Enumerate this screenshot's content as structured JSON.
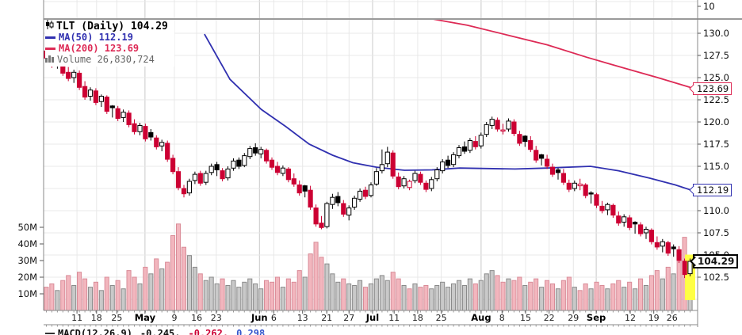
{
  "legend": {
    "symbol": "TLT (Daily) 104.29",
    "ma50": "MA(50) 112.19",
    "ma200": "MA(200) 123.69",
    "volume": "Volume 26,830,724"
  },
  "macd_row": {
    "label": "MACD(12,26,9)",
    "v1": "-0.245,",
    "v2": "-0.262,",
    "v3": "0.298"
  },
  "colors": {
    "down": "#cc0033",
    "up_fill": "#ffffff",
    "up_stroke": "#000000",
    "ma50": "#3030b0",
    "ma200": "#dd2a55",
    "vol_up_fill": "#c9c9c9",
    "vol_up_stroke": "#8a8a8a",
    "vol_down_fill": "#f2b6be",
    "vol_down_stroke": "#d98c98",
    "grid": "#e8e8e8",
    "grid_month": "#c9c9c9",
    "axis": "#888888",
    "separator": "#9a9a9a",
    "tick": "#555555",
    "label": "#111111",
    "legend_gray": "#666666",
    "highlight": "#ffff44",
    "black": "#000000",
    "macd_v2": "#cc0033",
    "macd_v3": "#3355cc"
  },
  "chart_data": {
    "type": "candlestick",
    "title": "TLT (Daily)",
    "last_price": 104.29,
    "ma50_value": 112.19,
    "ma200_value": 123.69,
    "last_volume": "26,830,724",
    "ylim": [
      100,
      131.6
    ],
    "volume_ylim_millions": [
      0,
      55
    ],
    "grid": true,
    "legend_position": "top-left",
    "upper_panel_tick": "10",
    "price_ticks": [
      {
        "l": "130.0",
        "p": 130.0
      },
      {
        "l": "127.5",
        "p": 127.5
      },
      {
        "l": "125.0",
        "p": 125.0
      },
      {
        "l": "122.5",
        "p": 122.5
      },
      {
        "l": "120.0",
        "p": 120.0
      },
      {
        "l": "117.5",
        "p": 117.5
      },
      {
        "l": "115.0",
        "p": 115.0
      },
      {
        "l": "110.0",
        "p": 110.0
      },
      {
        "l": "107.5",
        "p": 107.5
      },
      {
        "l": "105.0",
        "p": 105.0
      },
      {
        "l": "102.5",
        "p": 102.5
      }
    ],
    "callouts": [
      {
        "label": "123.69",
        "price": 123.69,
        "color": "ma200",
        "bold": false
      },
      {
        "label": "112.19",
        "price": 112.19,
        "color": "ma50",
        "bold": false
      },
      {
        "label": "104.29",
        "price": 104.29,
        "color": "black",
        "bold": true
      }
    ],
    "volume_ticks": [
      {
        "l": "50M",
        "v": 50
      },
      {
        "l": "40M",
        "v": 40
      },
      {
        "l": "30M",
        "v": 30
      },
      {
        "l": "20M",
        "v": 20
      },
      {
        "l": "10M",
        "v": 10
      }
    ],
    "date_ticks": [
      {
        "l": "11",
        "f": 0.051,
        "b": false
      },
      {
        "l": "18",
        "f": 0.081,
        "b": false
      },
      {
        "l": "25",
        "f": 0.112,
        "b": false
      },
      {
        "l": "May",
        "f": 0.155,
        "b": true
      },
      {
        "l": "9",
        "f": 0.2,
        "b": false
      },
      {
        "l": "16",
        "f": 0.234,
        "b": false
      },
      {
        "l": "23",
        "f": 0.264,
        "b": false
      },
      {
        "l": "Jun",
        "f": 0.33,
        "b": true
      },
      {
        "l": "6",
        "f": 0.352,
        "b": false
      },
      {
        "l": "13",
        "f": 0.396,
        "b": false
      },
      {
        "l": "21",
        "f": 0.433,
        "b": false
      },
      {
        "l": "27",
        "f": 0.467,
        "b": false
      },
      {
        "l": "Jul",
        "f": 0.503,
        "b": true
      },
      {
        "l": "11",
        "f": 0.536,
        "b": false
      },
      {
        "l": "18",
        "f": 0.572,
        "b": false
      },
      {
        "l": "25",
        "f": 0.608,
        "b": false
      },
      {
        "l": "Aug",
        "f": 0.669,
        "b": true
      },
      {
        "l": "8",
        "f": 0.701,
        "b": false
      },
      {
        "l": "15",
        "f": 0.737,
        "b": false
      },
      {
        "l": "22",
        "f": 0.773,
        "b": false
      },
      {
        "l": "29",
        "f": 0.81,
        "b": false
      },
      {
        "l": "Sep",
        "f": 0.845,
        "b": true
      },
      {
        "l": "12",
        "f": 0.897,
        "b": false
      },
      {
        "l": "19",
        "f": 0.933,
        "b": false
      },
      {
        "l": "26",
        "f": 0.961,
        "b": false
      }
    ],
    "ma50_path": [
      [
        0.246,
        129.9
      ],
      [
        0.285,
        124.8
      ],
      [
        0.333,
        121.4
      ],
      [
        0.37,
        119.5
      ],
      [
        0.406,
        117.5
      ],
      [
        0.442,
        116.25
      ],
      [
        0.473,
        115.4
      ],
      [
        0.509,
        114.9
      ],
      [
        0.552,
        114.55
      ],
      [
        0.594,
        114.6
      ],
      [
        0.636,
        114.8
      ],
      [
        0.721,
        114.7
      ],
      [
        0.77,
        114.8
      ],
      [
        0.836,
        115.0
      ],
      [
        0.879,
        114.5
      ],
      [
        0.927,
        113.66
      ],
      [
        0.966,
        112.9
      ],
      [
        0.993,
        112.25
      ]
    ],
    "ma200_path": [
      [
        0.588,
        131.7
      ],
      [
        0.648,
        130.9
      ],
      [
        0.709,
        129.8
      ],
      [
        0.77,
        128.7
      ],
      [
        0.83,
        127.3
      ],
      [
        0.891,
        126.0
      ],
      [
        0.939,
        125.0
      ],
      [
        0.993,
        123.8
      ]
    ],
    "candles": [
      [
        128.0,
        128.6,
        126.9,
        127.2,
        "r",
        14
      ],
      [
        127.3,
        127.8,
        126.1,
        126.4,
        "r",
        16
      ],
      [
        126.5,
        127.3,
        126.0,
        127.0,
        "w",
        12
      ],
      [
        126.9,
        127.1,
        125.2,
        125.5,
        "r",
        18
      ],
      [
        125.6,
        126.2,
        124.6,
        124.9,
        "r",
        21
      ],
      [
        125.0,
        125.9,
        124.4,
        125.6,
        "w",
        15
      ],
      [
        125.5,
        125.8,
        123.6,
        123.9,
        "r",
        23
      ],
      [
        124.0,
        124.6,
        122.5,
        122.8,
        "r",
        19
      ],
      [
        122.9,
        123.9,
        122.4,
        123.6,
        "w",
        14
      ],
      [
        123.5,
        123.8,
        121.9,
        122.2,
        "r",
        17
      ],
      [
        122.3,
        123.1,
        121.7,
        122.9,
        "w",
        12
      ],
      [
        122.8,
        123.0,
        120.9,
        121.2,
        "r",
        20
      ],
      [
        121.8,
        121.9,
        120.5,
        121.6,
        "b",
        15
      ],
      [
        121.5,
        121.8,
        120.1,
        120.4,
        "r",
        18
      ],
      [
        120.5,
        121.4,
        120.0,
        121.1,
        "w",
        13
      ],
      [
        121.0,
        121.3,
        119.4,
        119.7,
        "r",
        24
      ],
      [
        119.8,
        120.3,
        118.6,
        118.9,
        "r",
        20
      ],
      [
        118.9,
        119.9,
        118.5,
        119.6,
        "w",
        16
      ],
      [
        119.5,
        119.8,
        117.8,
        118.1,
        "r",
        26
      ],
      [
        118.8,
        119.2,
        117.9,
        118.3,
        "b",
        22
      ],
      [
        118.2,
        118.5,
        116.9,
        117.2,
        "r",
        31
      ],
      [
        117.3,
        118.0,
        116.7,
        117.7,
        "w",
        25
      ],
      [
        117.6,
        117.9,
        115.5,
        115.8,
        "r",
        29
      ],
      [
        115.9,
        116.3,
        114.1,
        114.4,
        "r",
        45
      ],
      [
        114.4,
        114.9,
        112.3,
        112.6,
        "r",
        52
      ],
      [
        112.5,
        112.9,
        111.5,
        111.9,
        "r",
        38
      ],
      [
        112.0,
        113.6,
        111.7,
        113.3,
        "w",
        33
      ],
      [
        113.4,
        114.4,
        113.0,
        114.1,
        "w",
        26
      ],
      [
        114.2,
        114.5,
        112.8,
        113.1,
        "r",
        22
      ],
      [
        113.2,
        114.5,
        112.9,
        114.2,
        "w",
        18
      ],
      [
        114.3,
        115.3,
        114.0,
        115.0,
        "w",
        20
      ],
      [
        115.2,
        115.5,
        113.9,
        114.6,
        "b",
        16
      ],
      [
        114.5,
        114.8,
        113.3,
        113.6,
        "r",
        19
      ],
      [
        113.7,
        115.0,
        113.4,
        114.7,
        "w",
        15
      ],
      [
        114.8,
        115.9,
        114.5,
        115.6,
        "w",
        18
      ],
      [
        115.7,
        116.0,
        114.7,
        115.0,
        "b",
        14
      ],
      [
        115.1,
        116.5,
        114.9,
        116.2,
        "w",
        17
      ],
      [
        116.1,
        117.3,
        115.8,
        117.0,
        "w",
        19
      ],
      [
        117.1,
        117.6,
        116.2,
        116.5,
        "b",
        16
      ],
      [
        116.4,
        117.2,
        115.9,
        116.9,
        "w",
        13
      ],
      [
        116.8,
        117.0,
        115.3,
        115.6,
        "r",
        18
      ],
      [
        115.7,
        116.0,
        114.6,
        114.9,
        "r",
        17
      ],
      [
        115.0,
        115.5,
        114.0,
        114.3,
        "r",
        20
      ],
      [
        114.2,
        115.1,
        113.9,
        114.8,
        "w",
        14
      ],
      [
        114.7,
        114.9,
        113.2,
        113.5,
        "r",
        19
      ],
      [
        113.6,
        114.2,
        112.7,
        113.0,
        "r",
        17
      ],
      [
        112.9,
        113.4,
        111.7,
        112.0,
        "r",
        24
      ],
      [
        112.8,
        112.9,
        111.5,
        112.2,
        "b",
        20
      ],
      [
        112.3,
        112.8,
        110.1,
        110.4,
        "r",
        34
      ],
      [
        110.3,
        110.7,
        108.2,
        108.5,
        "r",
        41
      ],
      [
        108.6,
        109.4,
        107.9,
        108.1,
        "r",
        32
      ],
      [
        108.2,
        111.0,
        108.0,
        110.8,
        "w",
        28
      ],
      [
        110.7,
        111.9,
        110.2,
        111.5,
        "w",
        22
      ],
      [
        111.6,
        112.1,
        110.5,
        110.9,
        "b",
        17
      ],
      [
        110.8,
        111.2,
        109.3,
        109.6,
        "r",
        19
      ],
      [
        109.5,
        110.6,
        108.9,
        110.3,
        "w",
        16
      ],
      [
        110.4,
        111.7,
        110.1,
        111.4,
        "w",
        15
      ],
      [
        111.3,
        112.5,
        111.0,
        112.2,
        "w",
        18
      ],
      [
        112.3,
        112.7,
        111.3,
        111.6,
        "r",
        14
      ],
      [
        111.7,
        113.2,
        111.5,
        112.9,
        "w",
        16
      ],
      [
        113.0,
        114.8,
        112.8,
        114.4,
        "w",
        19
      ],
      [
        114.5,
        116.9,
        114.2,
        115.2,
        "w",
        21
      ],
      [
        115.3,
        117.2,
        114.9,
        116.6,
        "w",
        18
      ],
      [
        116.5,
        116.8,
        113.6,
        113.9,
        "r",
        23
      ],
      [
        113.8,
        114.3,
        112.4,
        112.7,
        "r",
        19
      ],
      [
        112.8,
        113.9,
        112.5,
        113.6,
        "w",
        15
      ],
      [
        112.6,
        113.5,
        112.3,
        113.3,
        "h",
        13
      ],
      [
        113.4,
        114.5,
        113.1,
        114.2,
        "w",
        16
      ],
      [
        114.1,
        114.4,
        112.9,
        113.2,
        "r",
        14
      ],
      [
        113.1,
        113.4,
        112.1,
        112.4,
        "r",
        15
      ],
      [
        112.5,
        113.8,
        112.2,
        113.5,
        "w",
        13
      ],
      [
        113.6,
        114.9,
        113.3,
        114.6,
        "w",
        15
      ],
      [
        114.5,
        115.8,
        114.2,
        115.5,
        "w",
        17
      ],
      [
        115.7,
        116.2,
        114.8,
        115.1,
        "b",
        14
      ],
      [
        115.2,
        116.6,
        114.9,
        116.3,
        "w",
        16
      ],
      [
        116.2,
        117.4,
        115.9,
        117.1,
        "w",
        18
      ],
      [
        117.2,
        117.8,
        116.4,
        116.7,
        "b",
        15
      ],
      [
        116.8,
        118.2,
        116.5,
        117.9,
        "w",
        19
      ],
      [
        117.8,
        118.4,
        116.9,
        117.2,
        "r",
        16
      ],
      [
        117.3,
        118.8,
        117.0,
        118.5,
        "w",
        18
      ],
      [
        118.6,
        120.0,
        118.3,
        119.7,
        "w",
        22
      ],
      [
        119.6,
        120.6,
        119.2,
        120.3,
        "w",
        24
      ],
      [
        120.2,
        120.5,
        118.9,
        119.2,
        "r",
        21
      ],
      [
        119.0,
        119.8,
        118.6,
        119.1,
        "h",
        17
      ],
      [
        119.2,
        120.4,
        118.9,
        120.1,
        "w",
        19
      ],
      [
        120.0,
        120.3,
        118.4,
        118.7,
        "r",
        18
      ],
      [
        118.6,
        119.0,
        117.3,
        117.6,
        "r",
        20
      ],
      [
        118.4,
        118.5,
        117.2,
        117.8,
        "b",
        15
      ],
      [
        117.9,
        118.4,
        116.6,
        116.9,
        "r",
        17
      ],
      [
        116.8,
        117.3,
        115.4,
        115.7,
        "r",
        19
      ],
      [
        116.3,
        116.4,
        115.1,
        115.9,
        "b",
        14
      ],
      [
        115.8,
        116.3,
        114.7,
        115.0,
        "r",
        18
      ],
      [
        114.9,
        115.3,
        113.8,
        114.1,
        "r",
        16
      ],
      [
        114.6,
        114.8,
        113.5,
        114.3,
        "b",
        13
      ],
      [
        114.2,
        114.7,
        112.9,
        113.2,
        "r",
        18
      ],
      [
        113.1,
        113.5,
        112.1,
        112.4,
        "r",
        20
      ],
      [
        112.5,
        113.4,
        112.2,
        113.1,
        "w",
        14
      ],
      [
        112.8,
        113.6,
        112.3,
        113.0,
        "h",
        12
      ],
      [
        112.9,
        113.1,
        111.4,
        111.7,
        "r",
        16
      ],
      [
        112.0,
        112.2,
        110.8,
        111.9,
        "b",
        13
      ],
      [
        111.8,
        112.0,
        110.3,
        110.6,
        "r",
        17
      ],
      [
        110.5,
        111.1,
        109.7,
        110.0,
        "r",
        15
      ],
      [
        110.1,
        110.9,
        109.5,
        110.7,
        "w",
        13
      ],
      [
        110.6,
        110.8,
        109.2,
        109.5,
        "r",
        16
      ],
      [
        109.4,
        109.9,
        108.3,
        108.6,
        "r",
        18
      ],
      [
        108.7,
        109.6,
        108.2,
        109.3,
        "w",
        14
      ],
      [
        109.2,
        109.5,
        107.8,
        108.1,
        "r",
        17
      ],
      [
        108.7,
        108.8,
        107.4,
        108.5,
        "b",
        13
      ],
      [
        108.4,
        108.7,
        107.1,
        107.4,
        "r",
        19
      ],
      [
        107.5,
        108.2,
        106.8,
        107.9,
        "w",
        15
      ],
      [
        107.8,
        108.0,
        106.2,
        106.5,
        "r",
        21
      ],
      [
        106.4,
        107.1,
        105.6,
        105.9,
        "r",
        24
      ],
      [
        106.0,
        106.8,
        105.3,
        106.5,
        "w",
        19
      ],
      [
        106.4,
        106.6,
        104.9,
        105.2,
        "r",
        26
      ],
      [
        105.9,
        106.2,
        104.8,
        105.7,
        "b",
        22
      ],
      [
        105.6,
        106.0,
        104.1,
        104.4,
        "r",
        30
      ],
      [
        104.3,
        104.6,
        102.4,
        102.8,
        "r",
        44
      ],
      [
        102.9,
        104.6,
        102.6,
        104.29,
        "w",
        26.8
      ]
    ]
  }
}
